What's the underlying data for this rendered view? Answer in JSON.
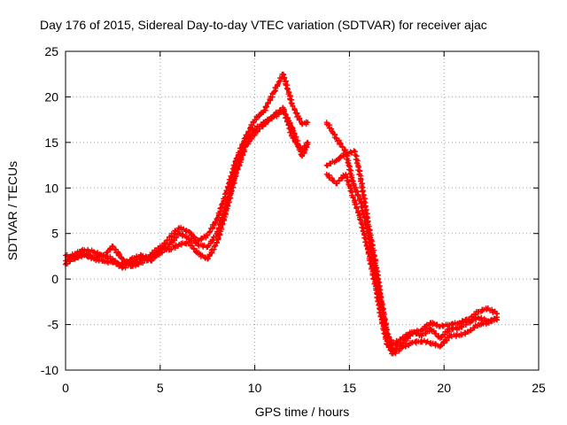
{
  "chart_data": {
    "type": "scatter",
    "title": "Day 176 of 2015, Sidereal Day-to-day VTEC variation (SDTVAR) for receiver ajac",
    "xlabel": "GPS time / hours",
    "ylabel": "SDTVAR / TECUs",
    "xlim": [
      0,
      25
    ],
    "ylim": [
      -10,
      25
    ],
    "xticks": [
      "0",
      "5",
      "10",
      "15",
      "20",
      "25"
    ],
    "yticks": [
      "-10",
      "-5",
      "0",
      "5",
      "10",
      "15",
      "20",
      "25"
    ],
    "grid": true,
    "marker": "plus",
    "series_color": "#ff0000",
    "series": [
      {
        "points": [
          [
            0.0,
            2.0
          ],
          [
            0.5,
            2.8
          ],
          [
            1.0,
            3.2
          ],
          [
            1.5,
            3.0
          ],
          [
            2.0,
            2.5
          ],
          [
            2.5,
            3.6
          ],
          [
            3.0,
            2.2
          ],
          [
            3.5,
            1.4
          ],
          [
            4.0,
            1.8
          ],
          [
            4.5,
            2.4
          ],
          [
            5.0,
            2.8
          ],
          [
            5.5,
            3.8
          ],
          [
            6.0,
            5.0
          ],
          [
            6.5,
            4.5
          ],
          [
            7.0,
            3.8
          ],
          [
            7.5,
            3.5
          ],
          [
            8.0,
            5.0
          ],
          [
            8.5,
            8.0
          ],
          [
            9.0,
            12.0
          ],
          [
            9.5,
            15.0
          ],
          [
            10.0,
            16.5
          ],
          [
            10.5,
            17.2
          ],
          [
            11.0,
            17.8
          ],
          [
            11.5,
            18.5
          ],
          [
            12.0,
            16.5
          ],
          [
            12.5,
            13.5
          ],
          [
            12.8,
            14.8
          ]
        ]
      },
      {
        "points": [
          [
            0.0,
            2.6
          ],
          [
            0.5,
            2.2
          ],
          [
            1.0,
            2.8
          ],
          [
            1.5,
            2.2
          ],
          [
            2.0,
            2.0
          ],
          [
            2.5,
            1.8
          ],
          [
            3.0,
            1.6
          ],
          [
            3.5,
            2.2
          ],
          [
            4.0,
            2.6
          ],
          [
            4.5,
            2.0
          ],
          [
            5.0,
            3.2
          ],
          [
            5.5,
            4.6
          ],
          [
            6.0,
            5.6
          ],
          [
            6.5,
            5.2
          ],
          [
            7.0,
            4.2
          ],
          [
            7.5,
            4.8
          ],
          [
            8.0,
            6.5
          ],
          [
            8.5,
            9.5
          ],
          [
            9.0,
            13.0
          ],
          [
            9.5,
            15.5
          ],
          [
            10.0,
            17.5
          ],
          [
            10.5,
            18.5
          ],
          [
            11.0,
            20.5
          ],
          [
            11.5,
            22.5
          ],
          [
            12.0,
            19.0
          ],
          [
            12.5,
            17.0
          ],
          [
            12.8,
            17.2
          ]
        ]
      },
      {
        "points": [
          [
            0.0,
            1.6
          ],
          [
            0.5,
            2.4
          ],
          [
            1.0,
            2.6
          ],
          [
            1.5,
            2.4
          ],
          [
            2.0,
            2.6
          ],
          [
            2.5,
            2.2
          ],
          [
            3.0,
            1.2
          ],
          [
            3.5,
            1.8
          ],
          [
            4.0,
            2.2
          ],
          [
            4.5,
            2.6
          ],
          [
            5.0,
            3.6
          ],
          [
            5.5,
            3.2
          ],
          [
            6.0,
            3.8
          ],
          [
            6.5,
            4.0
          ],
          [
            7.0,
            2.8
          ],
          [
            7.5,
            2.2
          ],
          [
            8.0,
            4.0
          ],
          [
            8.5,
            7.5
          ],
          [
            9.0,
            11.5
          ],
          [
            9.5,
            14.5
          ],
          [
            10.0,
            16.0
          ],
          [
            10.5,
            17.0
          ],
          [
            11.0,
            18.0
          ],
          [
            11.5,
            18.8
          ],
          [
            12.0,
            15.5
          ],
          [
            12.5,
            14.0
          ],
          [
            12.8,
            15.0
          ]
        ]
      },
      {
        "points": [
          [
            13.8,
            17.2
          ],
          [
            14.3,
            15.5
          ],
          [
            14.8,
            14.0
          ],
          [
            15.2,
            10.5
          ],
          [
            15.6,
            8.5
          ],
          [
            16.0,
            5.0
          ],
          [
            16.4,
            0.5
          ],
          [
            16.7,
            -3.0
          ],
          [
            17.0,
            -6.5
          ],
          [
            17.3,
            -7.8
          ],
          [
            17.8,
            -7.0
          ],
          [
            18.3,
            -6.0
          ],
          [
            18.8,
            -5.6
          ],
          [
            19.3,
            -4.8
          ],
          [
            19.8,
            -5.2
          ],
          [
            20.3,
            -5.0
          ],
          [
            20.8,
            -4.8
          ],
          [
            21.3,
            -4.4
          ],
          [
            21.8,
            -3.6
          ],
          [
            22.3,
            -3.2
          ],
          [
            22.8,
            -3.8
          ]
        ]
      },
      {
        "points": [
          [
            13.8,
            12.5
          ],
          [
            14.3,
            13.0
          ],
          [
            14.8,
            13.8
          ],
          [
            15.3,
            14.0
          ],
          [
            15.6,
            11.0
          ],
          [
            16.0,
            6.0
          ],
          [
            16.4,
            1.5
          ],
          [
            16.7,
            -2.5
          ],
          [
            17.0,
            -6.0
          ],
          [
            17.3,
            -7.2
          ],
          [
            17.8,
            -6.5
          ],
          [
            18.3,
            -5.8
          ],
          [
            18.8,
            -6.2
          ],
          [
            19.3,
            -5.5
          ],
          [
            19.8,
            -6.5
          ],
          [
            20.3,
            -5.5
          ],
          [
            20.8,
            -5.4
          ],
          [
            21.3,
            -4.8
          ],
          [
            21.8,
            -4.2
          ],
          [
            22.3,
            -4.6
          ],
          [
            22.8,
            -4.5
          ]
        ]
      },
      {
        "points": [
          [
            13.8,
            11.5
          ],
          [
            14.3,
            10.5
          ],
          [
            14.8,
            11.5
          ],
          [
            15.2,
            9.0
          ],
          [
            15.6,
            6.5
          ],
          [
            16.0,
            3.0
          ],
          [
            16.4,
            -1.0
          ],
          [
            16.7,
            -4.5
          ],
          [
            17.0,
            -7.2
          ],
          [
            17.3,
            -8.2
          ],
          [
            17.8,
            -7.5
          ],
          [
            18.3,
            -7.0
          ],
          [
            18.8,
            -6.8
          ],
          [
            19.3,
            -7.0
          ],
          [
            19.8,
            -7.4
          ],
          [
            20.3,
            -6.2
          ],
          [
            20.8,
            -6.2
          ],
          [
            21.3,
            -5.8
          ],
          [
            21.8,
            -5.0
          ],
          [
            22.3,
            -4.8
          ],
          [
            22.8,
            -4.2
          ]
        ]
      }
    ]
  }
}
